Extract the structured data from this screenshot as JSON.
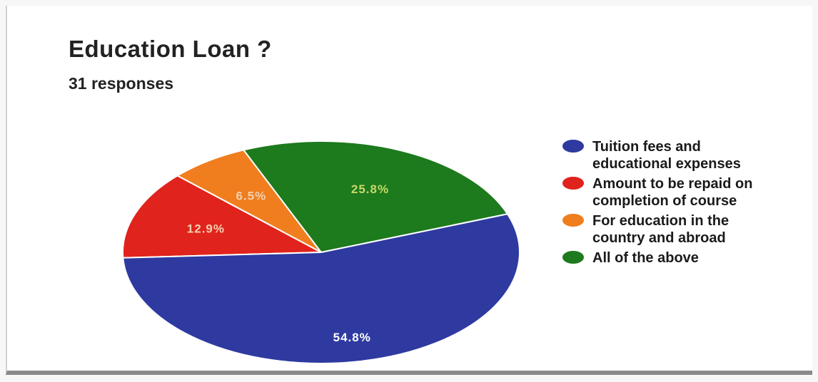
{
  "header": {
    "title": "Education Loan ?",
    "subtitle": "31 responses"
  },
  "chart_data": {
    "type": "pie",
    "title": "Education Loan ?",
    "subtitle": "31 responses",
    "legend_position": "right",
    "slices": [
      {
        "label": "Tuition fees and educational expenses",
        "value": 54.8,
        "display": "54.8%",
        "color": "#2e3aa0"
      },
      {
        "label": "Amount to be repaid on completion of course",
        "value": 12.9,
        "display": "12.9%",
        "color": "#e0231c"
      },
      {
        "label": "For education in the country and abroad",
        "value": 6.5,
        "display": "6.5%",
        "color": "#f07e1e"
      },
      {
        "label": "All of the above",
        "value": 25.8,
        "display": "25.8%",
        "color": "#1d7a1d"
      }
    ],
    "order_drawn": [
      1,
      2,
      3,
      0
    ]
  }
}
